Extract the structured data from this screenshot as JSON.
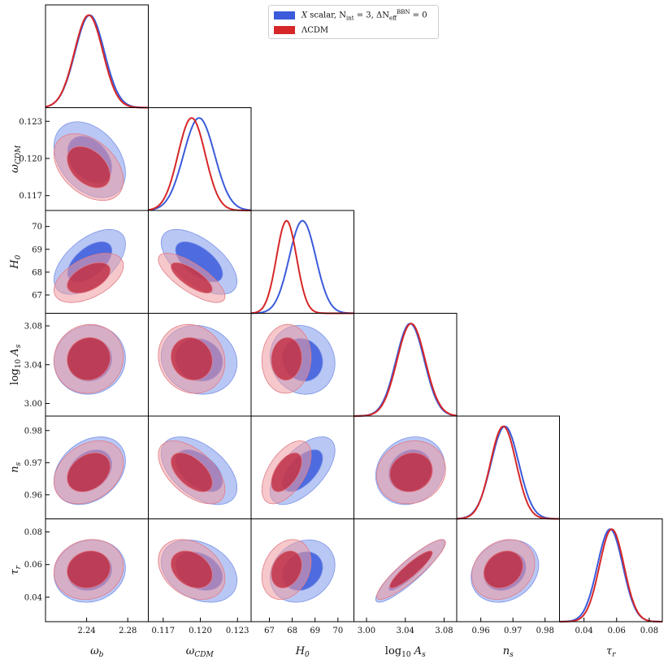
{
  "legend": {
    "items": [
      {
        "label": "X scalar, N_int = 3, ΔN_eff^BBN = 0",
        "color": "#3b5bdb"
      },
      {
        "label": "ΛCDM",
        "color": "#d62728"
      }
    ]
  },
  "chart_data": {
    "type": "scatter",
    "grid": false,
    "legend_position": "top-center",
    "parameters": [
      {
        "name": "ω_b",
        "ticks": [
          "2.24",
          "2.28"
        ],
        "range": [
          2.2,
          2.3
        ]
      },
      {
        "name": "ω_CDM",
        "ticks": [
          "0.117",
          "0.120",
          "0.123"
        ],
        "range": [
          0.1158,
          0.1241
        ]
      },
      {
        "name": "H_0",
        "ticks": [
          "67",
          "68",
          "69",
          "70"
        ],
        "range": [
          66.2,
          70.7
        ]
      },
      {
        "name": "log10 A_s",
        "ticks": [
          "3.00",
          "3.04",
          "3.08"
        ],
        "range": [
          2.987,
          3.093
        ]
      },
      {
        "name": "n_s",
        "ticks": [
          "0.96",
          "0.97",
          "0.98"
        ],
        "range": [
          0.9525,
          0.9845
        ]
      },
      {
        "name": "τ_r",
        "ticks": [
          "0.04",
          "0.06",
          "0.08"
        ],
        "range": [
          0.025,
          0.088
        ]
      }
    ],
    "series": [
      {
        "name": "X scalar, N_int = 3, ΔN_eff^BBN = 0",
        "color": "#3b5bdb",
        "means": [
          2.243,
          0.1199,
          68.45,
          3.045,
          0.9675,
          0.056
        ],
        "sigmas": [
          0.0142,
          0.00125,
          0.58,
          0.0145,
          0.0043,
          0.0078
        ],
        "peak_ratio_lcdm_to_x": 1.0
      },
      {
        "name": "ΛCDM",
        "color": "#d62728",
        "means": [
          2.242,
          0.1193,
          67.75,
          3.046,
          0.967,
          0.057
        ],
        "sigmas": [
          0.0138,
          0.0011,
          0.44,
          0.0145,
          0.004,
          0.0075
        ],
        "peak_ratio_lcdm_to_x": 1.0
      }
    ],
    "correlations_x": [
      [
        0,
        1,
        2,
        3
      ],
      [
        0,
        0,
        0,
        0
      ]
    ],
    "pair_correlations": [
      {
        "i": 1,
        "j": 0,
        "rho_x": -0.35,
        "rho_lcdm": -0.4
      },
      {
        "i": 2,
        "j": 0,
        "rho_x": 0.55,
        "rho_lcdm": 0.5
      },
      {
        "i": 2,
        "j": 1,
        "rho_x": -0.6,
        "rho_lcdm": -0.75
      },
      {
        "i": 3,
        "j": 0,
        "rho_x": 0.05,
        "rho_lcdm": 0.05
      },
      {
        "i": 3,
        "j": 1,
        "rho_x": -0.1,
        "rho_lcdm": -0.1
      },
      {
        "i": 3,
        "j": 2,
        "rho_x": -0.1,
        "rho_lcdm": 0.05
      },
      {
        "i": 4,
        "j": 0,
        "rho_x": 0.3,
        "rho_lcdm": 0.3
      },
      {
        "i": 4,
        "j": 1,
        "rho_x": -0.5,
        "rho_lcdm": -0.55
      },
      {
        "i": 4,
        "j": 2,
        "rho_x": 0.6,
        "rho_lcdm": 0.55
      },
      {
        "i": 4,
        "j": 3,
        "rho_x": 0.15,
        "rho_lcdm": 0.1
      },
      {
        "i": 5,
        "j": 0,
        "rho_x": 0.1,
        "rho_lcdm": 0.1
      },
      {
        "i": 5,
        "j": 1,
        "rho_x": -0.3,
        "rho_lcdm": -0.3
      },
      {
        "i": 5,
        "j": 2,
        "rho_x": 0.2,
        "rho_lcdm": 0.25
      },
      {
        "i": 5,
        "j": 3,
        "rho_x": 0.9,
        "rho_lcdm": 0.9
      },
      {
        "i": 5,
        "j": 4,
        "rho_x": 0.2,
        "rho_lcdm": 0.2
      }
    ]
  }
}
